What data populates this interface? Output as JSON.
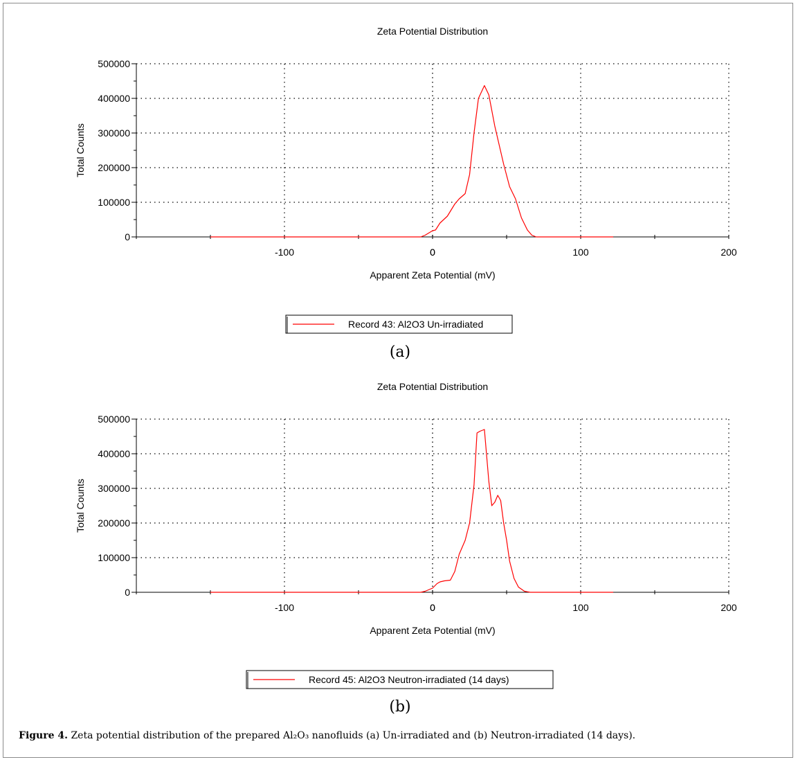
{
  "chart_data": [
    {
      "type": "line",
      "title": "Zeta Potential Distribution",
      "xlabel": "Apparent Zeta Potential (mV)",
      "ylabel": "Total Counts",
      "xlim": [
        -200,
        200
      ],
      "ylim": [
        0,
        500000
      ],
      "xticks": [
        -100,
        0,
        100,
        200
      ],
      "yticks": [
        0,
        100000,
        200000,
        300000,
        400000,
        500000
      ],
      "grid": true,
      "legend_position": "bottom-center",
      "panel_label": "(a)",
      "series": [
        {
          "name": "Record 43: Al2O3 Un-irradiated",
          "color": "#ff0000",
          "x": [
            -150,
            -8,
            -5,
            0,
            2,
            5,
            10,
            15,
            18,
            22,
            25,
            28,
            31,
            35,
            38,
            42,
            48,
            52,
            56,
            60,
            64,
            67,
            70,
            100,
            122
          ],
          "y": [
            0,
            0,
            5000,
            18000,
            20000,
            40000,
            60000,
            95000,
            110000,
            125000,
            180000,
            300000,
            400000,
            437000,
            410000,
            320000,
            210000,
            145000,
            110000,
            55000,
            20000,
            5000,
            0,
            0,
            0
          ]
        }
      ]
    },
    {
      "type": "line",
      "title": "Zeta Potential Distribution",
      "xlabel": "Apparent Zeta Potential (mV)",
      "ylabel": "Total Counts",
      "xlim": [
        -200,
        200
      ],
      "ylim": [
        0,
        500000
      ],
      "xticks": [
        -100,
        0,
        100,
        200
      ],
      "yticks": [
        0,
        100000,
        200000,
        300000,
        400000,
        500000
      ],
      "grid": true,
      "legend_position": "bottom-center",
      "panel_label": "(b)",
      "series": [
        {
          "name": "Record 45: Al2O3 Neutron-irradiated (14 days)",
          "color": "#ff0000",
          "x": [
            -150,
            -8,
            -5,
            0,
            3,
            5,
            8,
            12,
            15,
            18,
            22,
            25,
            28,
            30,
            32,
            35,
            38,
            40,
            42,
            44,
            46,
            48,
            50,
            52,
            55,
            58,
            62,
            66,
            70,
            100,
            122
          ],
          "y": [
            0,
            0,
            3000,
            12000,
            25000,
            30000,
            33000,
            35000,
            60000,
            110000,
            150000,
            200000,
            310000,
            460000,
            465000,
            470000,
            320000,
            250000,
            260000,
            280000,
            265000,
            200000,
            150000,
            90000,
            40000,
            15000,
            3000,
            0,
            0,
            0,
            0
          ]
        }
      ]
    }
  ],
  "caption": {
    "label": "Figure 4.",
    "text": " Zeta potential distribution of the prepared Al₂O₃ nanofluids (a) Un-irradiated and (b) Neutron-irradiated (14 days)."
  }
}
